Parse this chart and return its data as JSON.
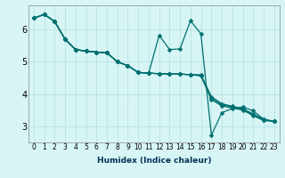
{
  "title": "",
  "xlabel": "Humidex (Indice chaleur)",
  "background_color": "#d8f5f5",
  "grid_color": "#b0e0e0",
  "line_color": "#007070",
  "xlim": [
    -0.5,
    23.5
  ],
  "ylim": [
    2.5,
    6.75
  ],
  "yticks": [
    3,
    4,
    5,
    6
  ],
  "xticks": [
    0,
    1,
    2,
    3,
    4,
    5,
    6,
    7,
    8,
    9,
    10,
    11,
    12,
    13,
    14,
    15,
    16,
    17,
    18,
    19,
    20,
    21,
    22,
    23
  ],
  "series": [
    [
      6.35,
      6.47,
      6.25,
      5.7,
      5.38,
      5.33,
      5.3,
      5.28,
      5.0,
      4.88,
      4.67,
      4.65,
      5.82,
      5.38,
      5.4,
      6.27,
      5.87,
      2.72,
      3.42,
      3.55,
      3.6,
      3.48,
      3.22,
      3.15
    ],
    [
      6.35,
      6.47,
      6.25,
      5.7,
      5.38,
      5.33,
      5.3,
      5.28,
      5.0,
      4.88,
      4.67,
      4.65,
      4.63,
      4.62,
      4.62,
      4.6,
      4.6,
      3.92,
      3.7,
      3.62,
      3.55,
      3.38,
      3.22,
      3.15
    ],
    [
      6.35,
      6.47,
      6.25,
      5.7,
      5.38,
      5.33,
      5.3,
      5.28,
      5.0,
      4.88,
      4.67,
      4.65,
      4.63,
      4.62,
      4.62,
      4.6,
      4.58,
      3.87,
      3.67,
      3.6,
      3.53,
      3.35,
      3.2,
      3.15
    ],
    [
      6.35,
      6.47,
      6.25,
      5.7,
      5.38,
      5.33,
      5.3,
      5.28,
      5.0,
      4.88,
      4.67,
      4.65,
      4.63,
      4.62,
      4.62,
      4.6,
      4.56,
      3.83,
      3.63,
      3.57,
      3.5,
      3.33,
      3.18,
      3.15
    ]
  ],
  "xlabel_fontsize": 6.5,
  "xlabel_color": "#003355",
  "tick_fontsize": 5.5,
  "ytick_fontsize": 7,
  "marker_size": 2.5,
  "linewidth": 0.9
}
